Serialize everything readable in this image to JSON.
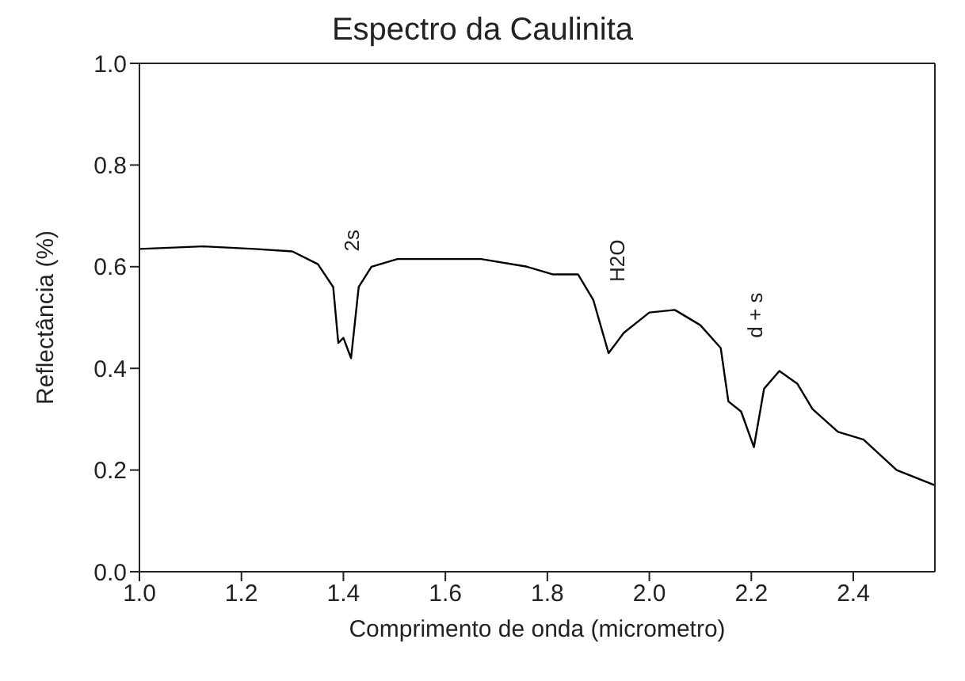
{
  "chart_data": {
    "type": "line",
    "title": "Espectro da Caulinita",
    "xlabel": "Comprimento de onda (micrometro)",
    "ylabel": "Reflectância (%)",
    "xlim": [
      1.0,
      2.56
    ],
    "xticks": [
      {
        "value": 1.0,
        "label": "1.0"
      },
      1.2,
      1.4,
      1.6,
      1.8,
      {
        "value": 2.0,
        "label": "2.0"
      },
      2.2,
      2.4
    ],
    "ylim": [
      0,
      1.0
    ],
    "yticks": [
      {
        "value": 0,
        "label": "0.0"
      },
      0.2,
      0.4,
      0.6,
      0.8,
      {
        "value": 1.0,
        "label": "1.0"
      }
    ],
    "marker": "none",
    "line_style": "solid",
    "annotations": [
      "2s",
      "H2O",
      "d + s"
    ],
    "series": [
      {
        "color": "#000000",
        "x": [
          1.0,
          1.125,
          1.226,
          1.3,
          1.35,
          1.38,
          1.39,
          1.4,
          1.415,
          1.43,
          1.455,
          1.506,
          1.67,
          1.76,
          1.81,
          1.86,
          1.89,
          1.92,
          1.95,
          2.0,
          2.05,
          2.1,
          2.14,
          2.155,
          2.18,
          2.205,
          2.225,
          2.255,
          2.29,
          2.32,
          2.37,
          2.42,
          2.485,
          2.56
        ],
        "values": [
          0.635,
          0.64,
          0.635,
          0.63,
          0.605,
          0.56,
          0.45,
          0.46,
          0.42,
          0.56,
          0.6,
          0.615,
          0.615,
          0.6,
          0.585,
          0.585,
          0.535,
          0.43,
          0.47,
          0.51,
          0.515,
          0.485,
          0.44,
          0.335,
          0.315,
          0.245,
          0.36,
          0.395,
          0.37,
          0.32,
          0.275,
          0.26,
          0.2,
          0.17
        ]
      }
    ]
  }
}
